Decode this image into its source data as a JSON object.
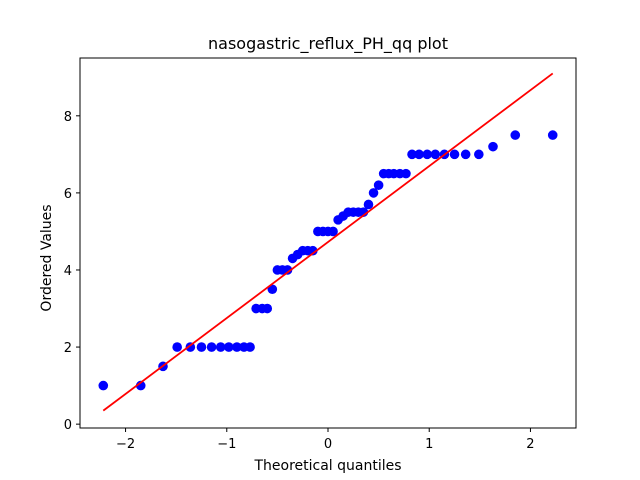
{
  "chart_data": {
    "type": "scatter",
    "title": "nasogastric_reflux_PH_qq plot",
    "xlabel": "Theoretical quantiles",
    "ylabel": "Ordered Values",
    "xlim": [
      -2.45,
      2.45
    ],
    "ylim": [
      -0.1,
      9.5
    ],
    "xticks": [
      -2,
      -1,
      0,
      1,
      2
    ],
    "xtick_labels": [
      "−2",
      "−1",
      "0",
      "1",
      "2"
    ],
    "yticks": [
      0,
      2,
      4,
      6,
      8
    ],
    "ytick_labels": [
      "0",
      "2",
      "4",
      "6",
      "8"
    ],
    "grid": false,
    "marker_color": "#0000ff",
    "line_color": "#ff0000",
    "fit_line": {
      "x": [
        -2.22,
        2.22
      ],
      "y": [
        0.35,
        9.1
      ]
    },
    "points": [
      {
        "x": -2.22,
        "y": 1.0
      },
      {
        "x": -1.85,
        "y": 1.0
      },
      {
        "x": -1.63,
        "y": 1.5
      },
      {
        "x": -1.49,
        "y": 2.0
      },
      {
        "x": -1.36,
        "y": 2.0
      },
      {
        "x": -1.25,
        "y": 2.0
      },
      {
        "x": -1.15,
        "y": 2.0
      },
      {
        "x": -1.06,
        "y": 2.0
      },
      {
        "x": -0.98,
        "y": 2.0
      },
      {
        "x": -0.9,
        "y": 2.0
      },
      {
        "x": -0.83,
        "y": 2.0
      },
      {
        "x": -0.77,
        "y": 2.0
      },
      {
        "x": -0.71,
        "y": 3.0
      },
      {
        "x": -0.65,
        "y": 3.0
      },
      {
        "x": -0.6,
        "y": 3.0
      },
      {
        "x": -0.55,
        "y": 3.5
      },
      {
        "x": -0.5,
        "y": 4.0
      },
      {
        "x": -0.45,
        "y": 4.0
      },
      {
        "x": -0.4,
        "y": 4.0
      },
      {
        "x": -0.35,
        "y": 4.3
      },
      {
        "x": -0.3,
        "y": 4.4
      },
      {
        "x": -0.25,
        "y": 4.5
      },
      {
        "x": -0.2,
        "y": 4.5
      },
      {
        "x": -0.15,
        "y": 4.5
      },
      {
        "x": -0.1,
        "y": 5.0
      },
      {
        "x": -0.05,
        "y": 5.0
      },
      {
        "x": 0.0,
        "y": 5.0
      },
      {
        "x": 0.05,
        "y": 5.0
      },
      {
        "x": 0.1,
        "y": 5.3
      },
      {
        "x": 0.15,
        "y": 5.4
      },
      {
        "x": 0.2,
        "y": 5.5
      },
      {
        "x": 0.25,
        "y": 5.5
      },
      {
        "x": 0.3,
        "y": 5.5
      },
      {
        "x": 0.35,
        "y": 5.5
      },
      {
        "x": 0.4,
        "y": 5.7
      },
      {
        "x": 0.45,
        "y": 6.0
      },
      {
        "x": 0.5,
        "y": 6.2
      },
      {
        "x": 0.55,
        "y": 6.5
      },
      {
        "x": 0.6,
        "y": 6.5
      },
      {
        "x": 0.65,
        "y": 6.5
      },
      {
        "x": 0.71,
        "y": 6.5
      },
      {
        "x": 0.77,
        "y": 6.5
      },
      {
        "x": 0.83,
        "y": 7.0
      },
      {
        "x": 0.9,
        "y": 7.0
      },
      {
        "x": 0.98,
        "y": 7.0
      },
      {
        "x": 1.06,
        "y": 7.0
      },
      {
        "x": 1.15,
        "y": 7.0
      },
      {
        "x": 1.25,
        "y": 7.0
      },
      {
        "x": 1.36,
        "y": 7.0
      },
      {
        "x": 1.49,
        "y": 7.0
      },
      {
        "x": 1.63,
        "y": 7.2
      },
      {
        "x": 1.85,
        "y": 7.5
      },
      {
        "x": 2.22,
        "y": 7.5
      }
    ]
  }
}
